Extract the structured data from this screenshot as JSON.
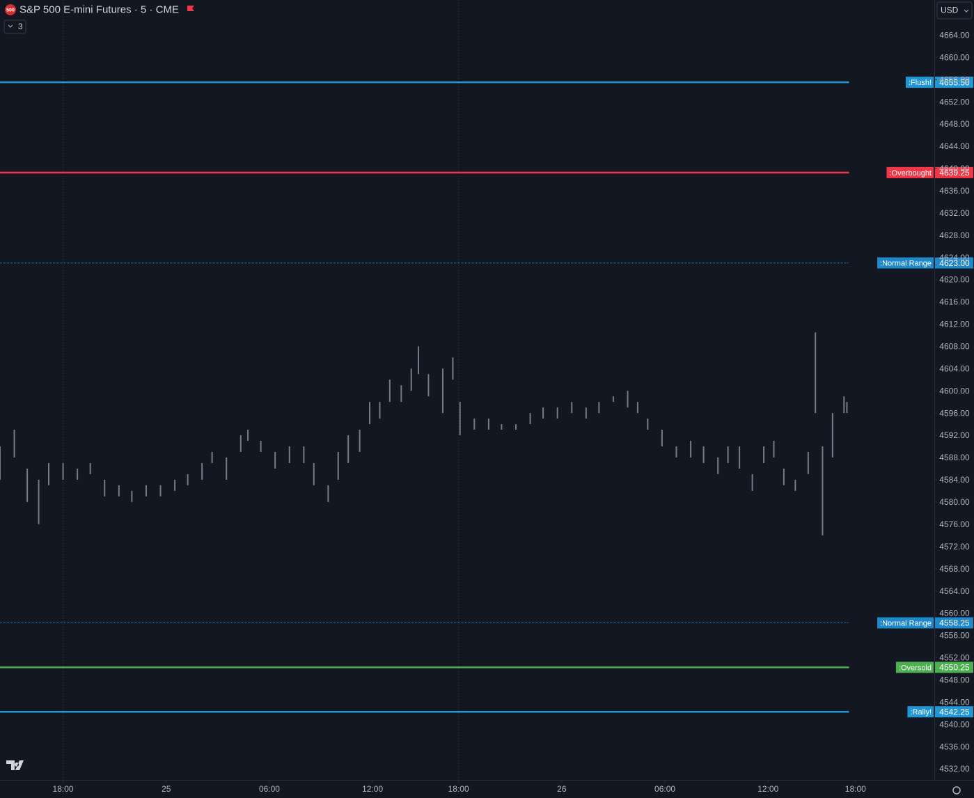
{
  "chart_data": {
    "type": "ohlc-levels",
    "symbol": "S&P 500 E-mini Futures · 5 · CME",
    "logo_text": "500",
    "indicators_count": 3,
    "currency": "USD",
    "xlim": [
      0,
      652
    ],
    "ylim": [
      4530,
      4670.3
    ],
    "xticks": [
      {
        "value": 44,
        "label": "18:00"
      },
      {
        "value": 116,
        "label": "25"
      },
      {
        "value": 188,
        "label": "06:00"
      },
      {
        "value": 260,
        "label": "12:00"
      },
      {
        "value": 320,
        "label": "18:00"
      },
      {
        "value": 392,
        "label": "26"
      },
      {
        "value": 464,
        "label": "06:00"
      },
      {
        "value": 536,
        "label": "12:00"
      },
      {
        "value": 597,
        "label": "18:00"
      }
    ],
    "session_lines": [
      44,
      320
    ],
    "yticks": [
      {
        "value": 4532,
        "label": "4532.00"
      },
      {
        "value": 4536,
        "label": "4536.00"
      },
      {
        "value": 4540,
        "label": "4540.00"
      },
      {
        "value": 4544,
        "label": "4544.00"
      },
      {
        "value": 4548,
        "label": "4548.00"
      },
      {
        "value": 4552,
        "label": "4552.00"
      },
      {
        "value": 4556,
        "label": "4556.00"
      },
      {
        "value": 4560,
        "label": "4560.00"
      },
      {
        "value": 4564,
        "label": "4564.00"
      },
      {
        "value": 4568,
        "label": "4568.00"
      },
      {
        "value": 4572,
        "label": "4572.00"
      },
      {
        "value": 4576,
        "label": "4576.00"
      },
      {
        "value": 4580,
        "label": "4580.00"
      },
      {
        "value": 4584,
        "label": "4584.00"
      },
      {
        "value": 4588,
        "label": "4588.00"
      },
      {
        "value": 4592,
        "label": "4592.00"
      },
      {
        "value": 4596,
        "label": "4596.00"
      },
      {
        "value": 4600,
        "label": "4600.00"
      },
      {
        "value": 4604,
        "label": "4604.00"
      },
      {
        "value": 4608,
        "label": "4608.00"
      },
      {
        "value": 4612,
        "label": "4612.00"
      },
      {
        "value": 4616,
        "label": "4616.00"
      },
      {
        "value": 4620,
        "label": "4620.00"
      },
      {
        "value": 4624,
        "label": "4624.00"
      },
      {
        "value": 4628,
        "label": "4628.00"
      },
      {
        "value": 4632,
        "label": "4632.00"
      },
      {
        "value": 4636,
        "label": "4636.00"
      },
      {
        "value": 4640,
        "label": "4640.00"
      },
      {
        "value": 4644,
        "label": "4644.00"
      },
      {
        "value": 4648,
        "label": "4648.00"
      },
      {
        "value": 4652,
        "label": "4652.00"
      },
      {
        "value": 4656,
        "label": "4656.00"
      },
      {
        "value": 4660,
        "label": "4660.00"
      },
      {
        "value": 4664,
        "label": "4664.00"
      }
    ],
    "bars": {
      "color": "#787b86",
      "x": [
        0,
        10,
        19,
        27,
        34,
        44,
        54,
        63,
        73,
        83,
        92,
        102,
        112,
        122,
        131,
        141,
        148,
        158,
        168,
        173,
        182,
        192,
        202,
        212,
        219,
        229,
        236,
        243,
        251,
        258,
        265,
        272,
        280,
        287,
        292,
        299,
        309,
        316,
        321,
        331,
        341,
        350,
        360,
        370,
        379,
        389,
        399,
        409,
        418,
        428,
        438,
        445,
        452,
        462,
        472,
        482,
        491,
        501,
        508,
        516,
        525,
        533,
        540,
        547,
        555,
        564,
        569,
        574,
        581,
        589,
        591
      ],
      "high": [
        4590,
        4593,
        4586,
        4584,
        4587,
        4587,
        4586,
        4587,
        4584,
        4583,
        4582,
        4583,
        4583,
        4584,
        4585,
        4587,
        4589,
        4588,
        4592,
        4593,
        4591,
        4589,
        4590,
        4590,
        4587,
        4583,
        4589,
        4592,
        4593,
        4598,
        4598,
        4602,
        4601,
        4604,
        4608,
        4603,
        4604,
        4606,
        4598,
        4595,
        4595,
        4594,
        4594,
        4596,
        4597,
        4597,
        4598,
        4597,
        4598,
        4599,
        4600,
        4598,
        4595,
        4593,
        4590,
        4591,
        4590,
        4588,
        4590,
        4590,
        4585,
        4590,
        4591,
        4586,
        4584,
        4589,
        4610.5,
        4590,
        4596,
        4599,
        4598
      ],
      "low": [
        4584,
        4588,
        4580,
        4576,
        4583,
        4584,
        4584,
        4585,
        4581,
        4581,
        4580,
        4581,
        4581,
        4582,
        4583,
        4584,
        4587,
        4584,
        4589,
        4591,
        4589,
        4586,
        4587,
        4587,
        4583,
        4580,
        4584,
        4587,
        4589,
        4594,
        4595,
        4598,
        4598,
        4600,
        4603,
        4599,
        4596,
        4602,
        4592,
        4593,
        4593,
        4593,
        4593,
        4594,
        4595,
        4595,
        4596,
        4595,
        4596,
        4598,
        4597,
        4596,
        4593,
        4590,
        4588,
        4588,
        4587,
        4585,
        4587,
        4586,
        4582,
        4587,
        4588,
        4583,
        4582,
        4585,
        4596,
        4574,
        4588,
        4596,
        4596
      ]
    },
    "levels": [
      {
        "name": ":Flush!",
        "value": 4655.5,
        "value_label": "4655.50",
        "color": "#2196d3",
        "style": "solid"
      },
      {
        "name": ":Overbought",
        "value": 4639.25,
        "value_label": "4639.25",
        "color": "#f23645",
        "style": "solid"
      },
      {
        "name": ":Normal Range",
        "value": 4623,
        "value_label": "4623.00",
        "color": "#1e88c8",
        "style": "dotted"
      },
      {
        "name": ":Normal Range",
        "value": 4558.25,
        "value_label": "4558.25",
        "color": "#1e88c8",
        "style": "dotted"
      },
      {
        "name": ":Oversold",
        "value": 4550.25,
        "value_label": "4550.25",
        "color": "#4caf50",
        "style": "solid"
      },
      {
        "name": ":Rally!",
        "value": 4542.25,
        "value_label": "4542.25",
        "color": "#2196d3",
        "style": "solid"
      }
    ]
  }
}
